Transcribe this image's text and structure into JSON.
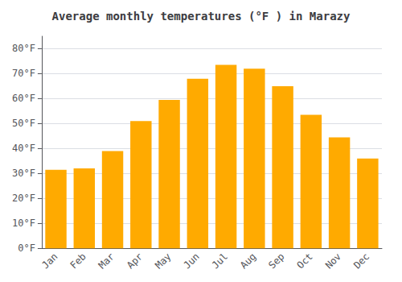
{
  "chart_data": {
    "type": "bar",
    "title": "Average monthly temperatures (°F ) in Marazy",
    "categories": [
      "Jan",
      "Feb",
      "Mar",
      "Apr",
      "May",
      "Jun",
      "Jul",
      "Aug",
      "Sep",
      "Oct",
      "Nov",
      "Dec"
    ],
    "values": [
      31.5,
      32.0,
      39.0,
      51.0,
      59.5,
      68.0,
      73.5,
      72.0,
      65.0,
      53.5,
      44.5,
      36.0
    ],
    "color": "#FFAA00",
    "ylim": [
      0,
      85
    ],
    "yticks": [
      {
        "value": 0,
        "label": "0°F"
      },
      {
        "value": 10,
        "label": "10°F"
      },
      {
        "value": 20,
        "label": "20°F"
      },
      {
        "value": 30,
        "label": "30°F"
      },
      {
        "value": 40,
        "label": "40°F"
      },
      {
        "value": 50,
        "label": "50°F"
      },
      {
        "value": 60,
        "label": "60°F"
      },
      {
        "value": 70,
        "label": "70°F"
      },
      {
        "value": 80,
        "label": "80°F"
      }
    ],
    "grid": true
  }
}
